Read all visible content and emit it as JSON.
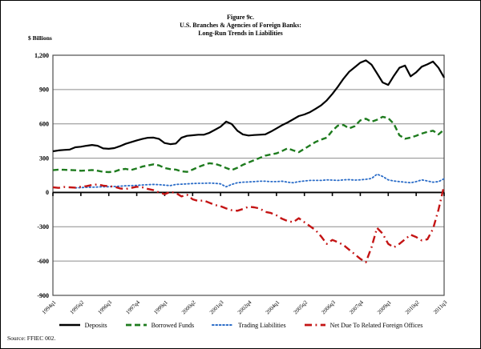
{
  "figure": {
    "title_lines": [
      "Figure 9c.",
      "U.S. Branches & Agencies of Foreign Banks:",
      "Long-Run Trends in Liabilities"
    ],
    "y_axis_label": "$ Billions",
    "source": "Source: FFIEC 002."
  },
  "chart_data": {
    "type": "line",
    "title": "Figure 9c. U.S. Branches & Agencies of Foreign Banks: Long-Run Trends in Liabilities",
    "xlabel": "",
    "ylabel": "$ Billions",
    "ylim": [
      -900,
      1200
    ],
    "grid": true,
    "legend_position": "bottom",
    "x_start": "1994q1",
    "x_end": "2011q3",
    "frequency": "quarterly",
    "y_ticks": [
      1200,
      900,
      600,
      300,
      0,
      -300,
      -600,
      -900
    ],
    "y_tick_labels": [
      "1,200",
      "900",
      "600",
      "300",
      "0",
      "-300",
      "-600",
      "-900"
    ],
    "x_tick_positions": [
      0,
      5,
      10,
      15,
      20,
      25,
      30,
      35,
      40,
      45,
      50,
      55,
      60,
      65,
      70
    ],
    "x_tick_labels": [
      "1994q1",
      "1995q2",
      "1996q3",
      "1997q4",
      "1999q1",
      "2000q2",
      "2001q3",
      "2002q4",
      "2004q1",
      "2005q2",
      "2006q3",
      "2007q4",
      "2009q1",
      "2010q2",
      "2011q3"
    ],
    "series": [
      {
        "name": "Deposits",
        "color": "#000000",
        "style": "solid",
        "start_index": 0,
        "values": [
          360,
          368,
          372,
          375,
          395,
          400,
          408,
          415,
          408,
          385,
          382,
          388,
          405,
          425,
          440,
          455,
          468,
          478,
          480,
          468,
          432,
          422,
          428,
          478,
          495,
          500,
          505,
          505,
          522,
          548,
          575,
          620,
          598,
          540,
          508,
          498,
          502,
          505,
          508,
          532,
          560,
          588,
          612,
          640,
          668,
          682,
          702,
          732,
          762,
          805,
          862,
          925,
          995,
          1055,
          1095,
          1135,
          1155,
          1118,
          1042,
          962,
          940,
          1020,
          1090,
          1110,
          1015,
          1050,
          1100,
          1120,
          1145,
          1090,
          1005
        ]
      },
      {
        "name": "Borrowed Funds",
        "color": "#1e7b1e",
        "style": "dashed",
        "start_index": 0,
        "values": [
          195,
          200,
          198,
          196,
          194,
          190,
          192,
          196,
          190,
          180,
          178,
          182,
          200,
          206,
          196,
          210,
          226,
          236,
          246,
          236,
          214,
          204,
          200,
          184,
          180,
          200,
          222,
          240,
          256,
          250,
          235,
          214,
          196,
          216,
          242,
          262,
          282,
          302,
          322,
          332,
          342,
          362,
          386,
          368,
          352,
          382,
          412,
          442,
          462,
          480,
          540,
          585,
          590,
          560,
          580,
          630,
          645,
          618,
          636,
          662,
          650,
          600,
          500,
          470,
          480,
          496,
          515,
          530,
          540,
          508,
          550
        ]
      },
      {
        "name": "Trading Liabilities",
        "color": "#2a6cc8",
        "style": "dotted",
        "start_index": 4,
        "values": [
          40,
          42,
          45,
          46,
          48,
          50,
          50,
          52,
          55,
          58,
          60,
          62,
          65,
          68,
          70,
          68,
          64,
          60,
          70,
          72,
          75,
          78,
          80,
          80,
          82,
          80,
          75,
          50,
          70,
          85,
          90,
          92,
          95,
          98,
          98,
          95,
          95,
          98,
          90,
          85,
          95,
          100,
          105,
          105,
          105,
          110,
          108,
          105,
          110,
          112,
          108,
          110,
          115,
          122,
          160,
          140,
          110,
          100,
          95,
          90,
          85,
          95,
          110,
          100,
          90,
          95,
          120
        ]
      },
      {
        "name": "Net Due To Related Foreign Offices",
        "color": "#c41414",
        "style": "dashdot",
        "start_index": 0,
        "values": [
          45,
          40,
          48,
          45,
          42,
          50,
          55,
          65,
          70,
          60,
          55,
          50,
          35,
          30,
          40,
          50,
          45,
          30,
          20,
          0,
          -15,
          5,
          -5,
          -35,
          -20,
          -60,
          -75,
          -70,
          -90,
          -110,
          -120,
          -140,
          -155,
          -160,
          -145,
          -125,
          -130,
          -140,
          -170,
          -180,
          -200,
          -230,
          -250,
          -260,
          -225,
          -260,
          -295,
          -330,
          -385,
          -450,
          -415,
          -435,
          -460,
          -500,
          -540,
          -580,
          -610,
          -480,
          -310,
          -360,
          -450,
          -480,
          -450,
          -410,
          -370,
          -390,
          -420,
          -410,
          -320,
          -150,
          60
        ]
      }
    ]
  }
}
